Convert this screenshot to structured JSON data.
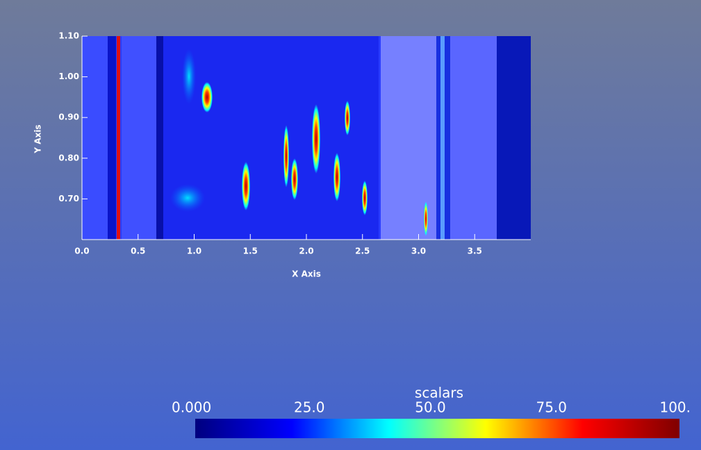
{
  "chart_data": {
    "type": "heatmap",
    "x_label": "X Axis",
    "y_label": "Y Axis",
    "xlim": [
      0,
      4.0
    ],
    "ylim": [
      0.6,
      1.1
    ],
    "xticks": [
      {
        "value": 0,
        "label": "0.0"
      },
      0.5,
      {
        "value": 1,
        "label": "1.0"
      },
      1.5,
      {
        "value": 2,
        "label": "2.0"
      },
      2.5,
      {
        "value": 3,
        "label": "3.0"
      },
      3.5
    ],
    "yticks": [
      {
        "value": 0.7,
        "label": "0.70"
      },
      {
        "value": 0.8,
        "label": "0.80"
      },
      {
        "value": 0.9,
        "label": "0.90"
      },
      {
        "value": 1.0,
        "label": "1.00"
      },
      {
        "value": 1.1,
        "label": "1.10"
      }
    ],
    "colorbar": {
      "title": "scalars",
      "range": [
        0,
        100
      ],
      "ticks": [
        {
          "value": 0,
          "label": "0.000"
        },
        {
          "value": 25,
          "label": "25.0"
        },
        {
          "value": 50,
          "label": "50.0"
        },
        {
          "value": 75,
          "label": "75.0"
        },
        {
          "value": 100,
          "label": "100."
        }
      ],
      "colors": [
        "#00007f",
        "#0000ff",
        "#00ffff",
        "#ffff00",
        "#ff0000",
        "#7f0000"
      ]
    }
  }
}
